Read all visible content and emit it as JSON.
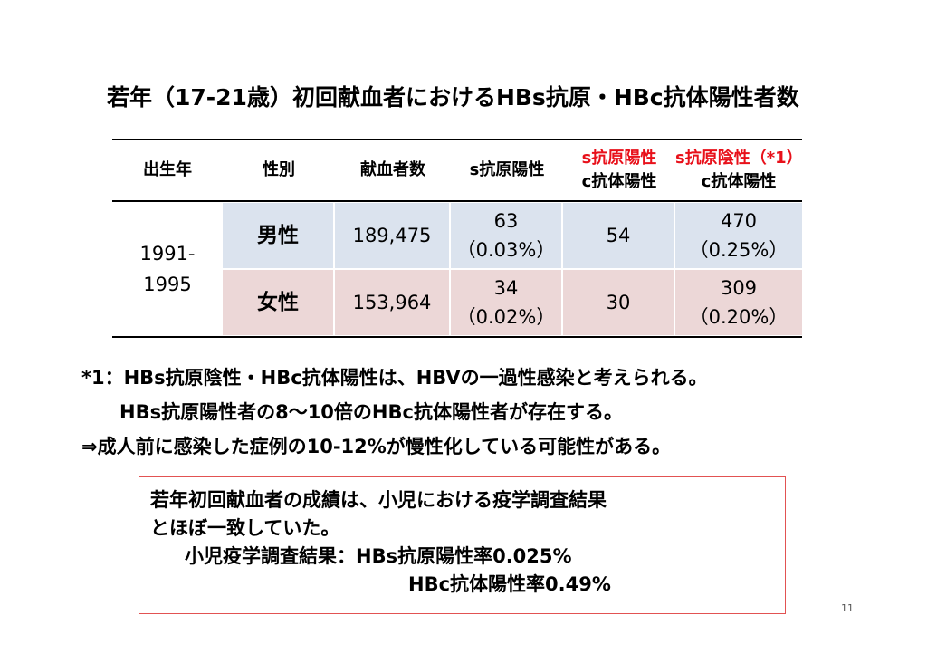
{
  "title": "若年（17-21歳）初回献血者におけるHBs抗原・HBc抗体陽性者数",
  "table": {
    "headers": {
      "birth_year": "出生年",
      "sex": "性別",
      "donors": "献血者数",
      "s_antigen": "s抗原陽性",
      "col5_line1": "s抗原陽性",
      "col5_line2": "c抗体陽性",
      "col6_line1": "s抗原陰性（*1）",
      "col6_line2": "c抗体陽性"
    },
    "birth_year_line1": "1991-",
    "birth_year_line2": "1995",
    "rows": [
      {
        "sex": "男性",
        "donors": "189,475",
        "s_pos": "63",
        "s_pos_pct": "（0.03%）",
        "s_pos_c_pos": "54",
        "s_neg_c_pos": "470",
        "s_neg_c_pos_pct": "（0.25%）"
      },
      {
        "sex": "女性",
        "donors": "153,964",
        "s_pos": "34",
        "s_pos_pct": "（0.02%）",
        "s_pos_c_pos": "30",
        "s_neg_c_pos": "309",
        "s_neg_c_pos_pct": "（0.20%）"
      }
    ],
    "colors": {
      "male_row": "#dbe3ee",
      "female_row": "#ecd7d7",
      "highlight_text": "#e8101a"
    }
  },
  "notes": [
    "*1：HBs抗原陰性・HBc抗体陽性は、HBVの一過性感染と考えられる。",
    "HBs抗原陽性者の8～10倍のHBc抗体陽性者が存在する。",
    "⇒成人前に感染した症例の10-12%が慢性化している可能性がある。"
  ],
  "box": {
    "line1": "若年初回献血者の成績は、小児における疫学調査結果",
    "line2": "とほぼ一致していた。",
    "line3": "小児疫学調査結果：HBs抗原陽性率0.025%",
    "line4": "HBc抗体陽性率0.49%",
    "border_color": "#e25252"
  },
  "page_number": "11"
}
